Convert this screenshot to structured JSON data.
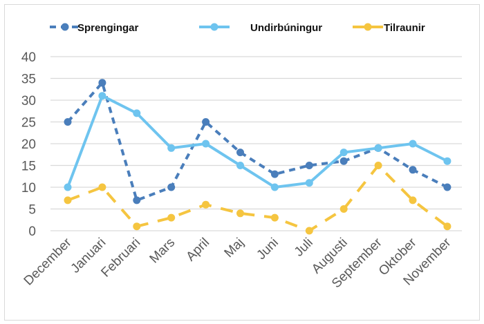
{
  "chart_data": {
    "type": "line",
    "title": "",
    "xlabel": "",
    "ylabel": "",
    "ylim": [
      0,
      40
    ],
    "yticks": [
      0,
      5,
      10,
      15,
      20,
      25,
      30,
      35,
      40
    ],
    "grid": true,
    "legend_position": "top",
    "categories": [
      "December",
      "Januari",
      "Februari",
      "Mars",
      "April",
      "Maj",
      "Juni",
      "Juli",
      "Augusti",
      "September",
      "Oktober",
      "November"
    ],
    "series": [
      {
        "name": "Sprengingar",
        "color": "#4a7ebb",
        "style": "dashed",
        "values": [
          25,
          34,
          7,
          10,
          25,
          18,
          13,
          15,
          16,
          19,
          14,
          10
        ]
      },
      {
        "name": "Undirbúningur",
        "color": "#6ec4ef",
        "style": "solid",
        "values": [
          10,
          31,
          27,
          19,
          20,
          15,
          10,
          11,
          18,
          19,
          20,
          16
        ]
      },
      {
        "name": "Tilraunir",
        "color": "#f5c540",
        "style": "long-dashed",
        "values": [
          7,
          10,
          1,
          3,
          6,
          4,
          3,
          0,
          5,
          15,
          7,
          1
        ]
      }
    ]
  }
}
